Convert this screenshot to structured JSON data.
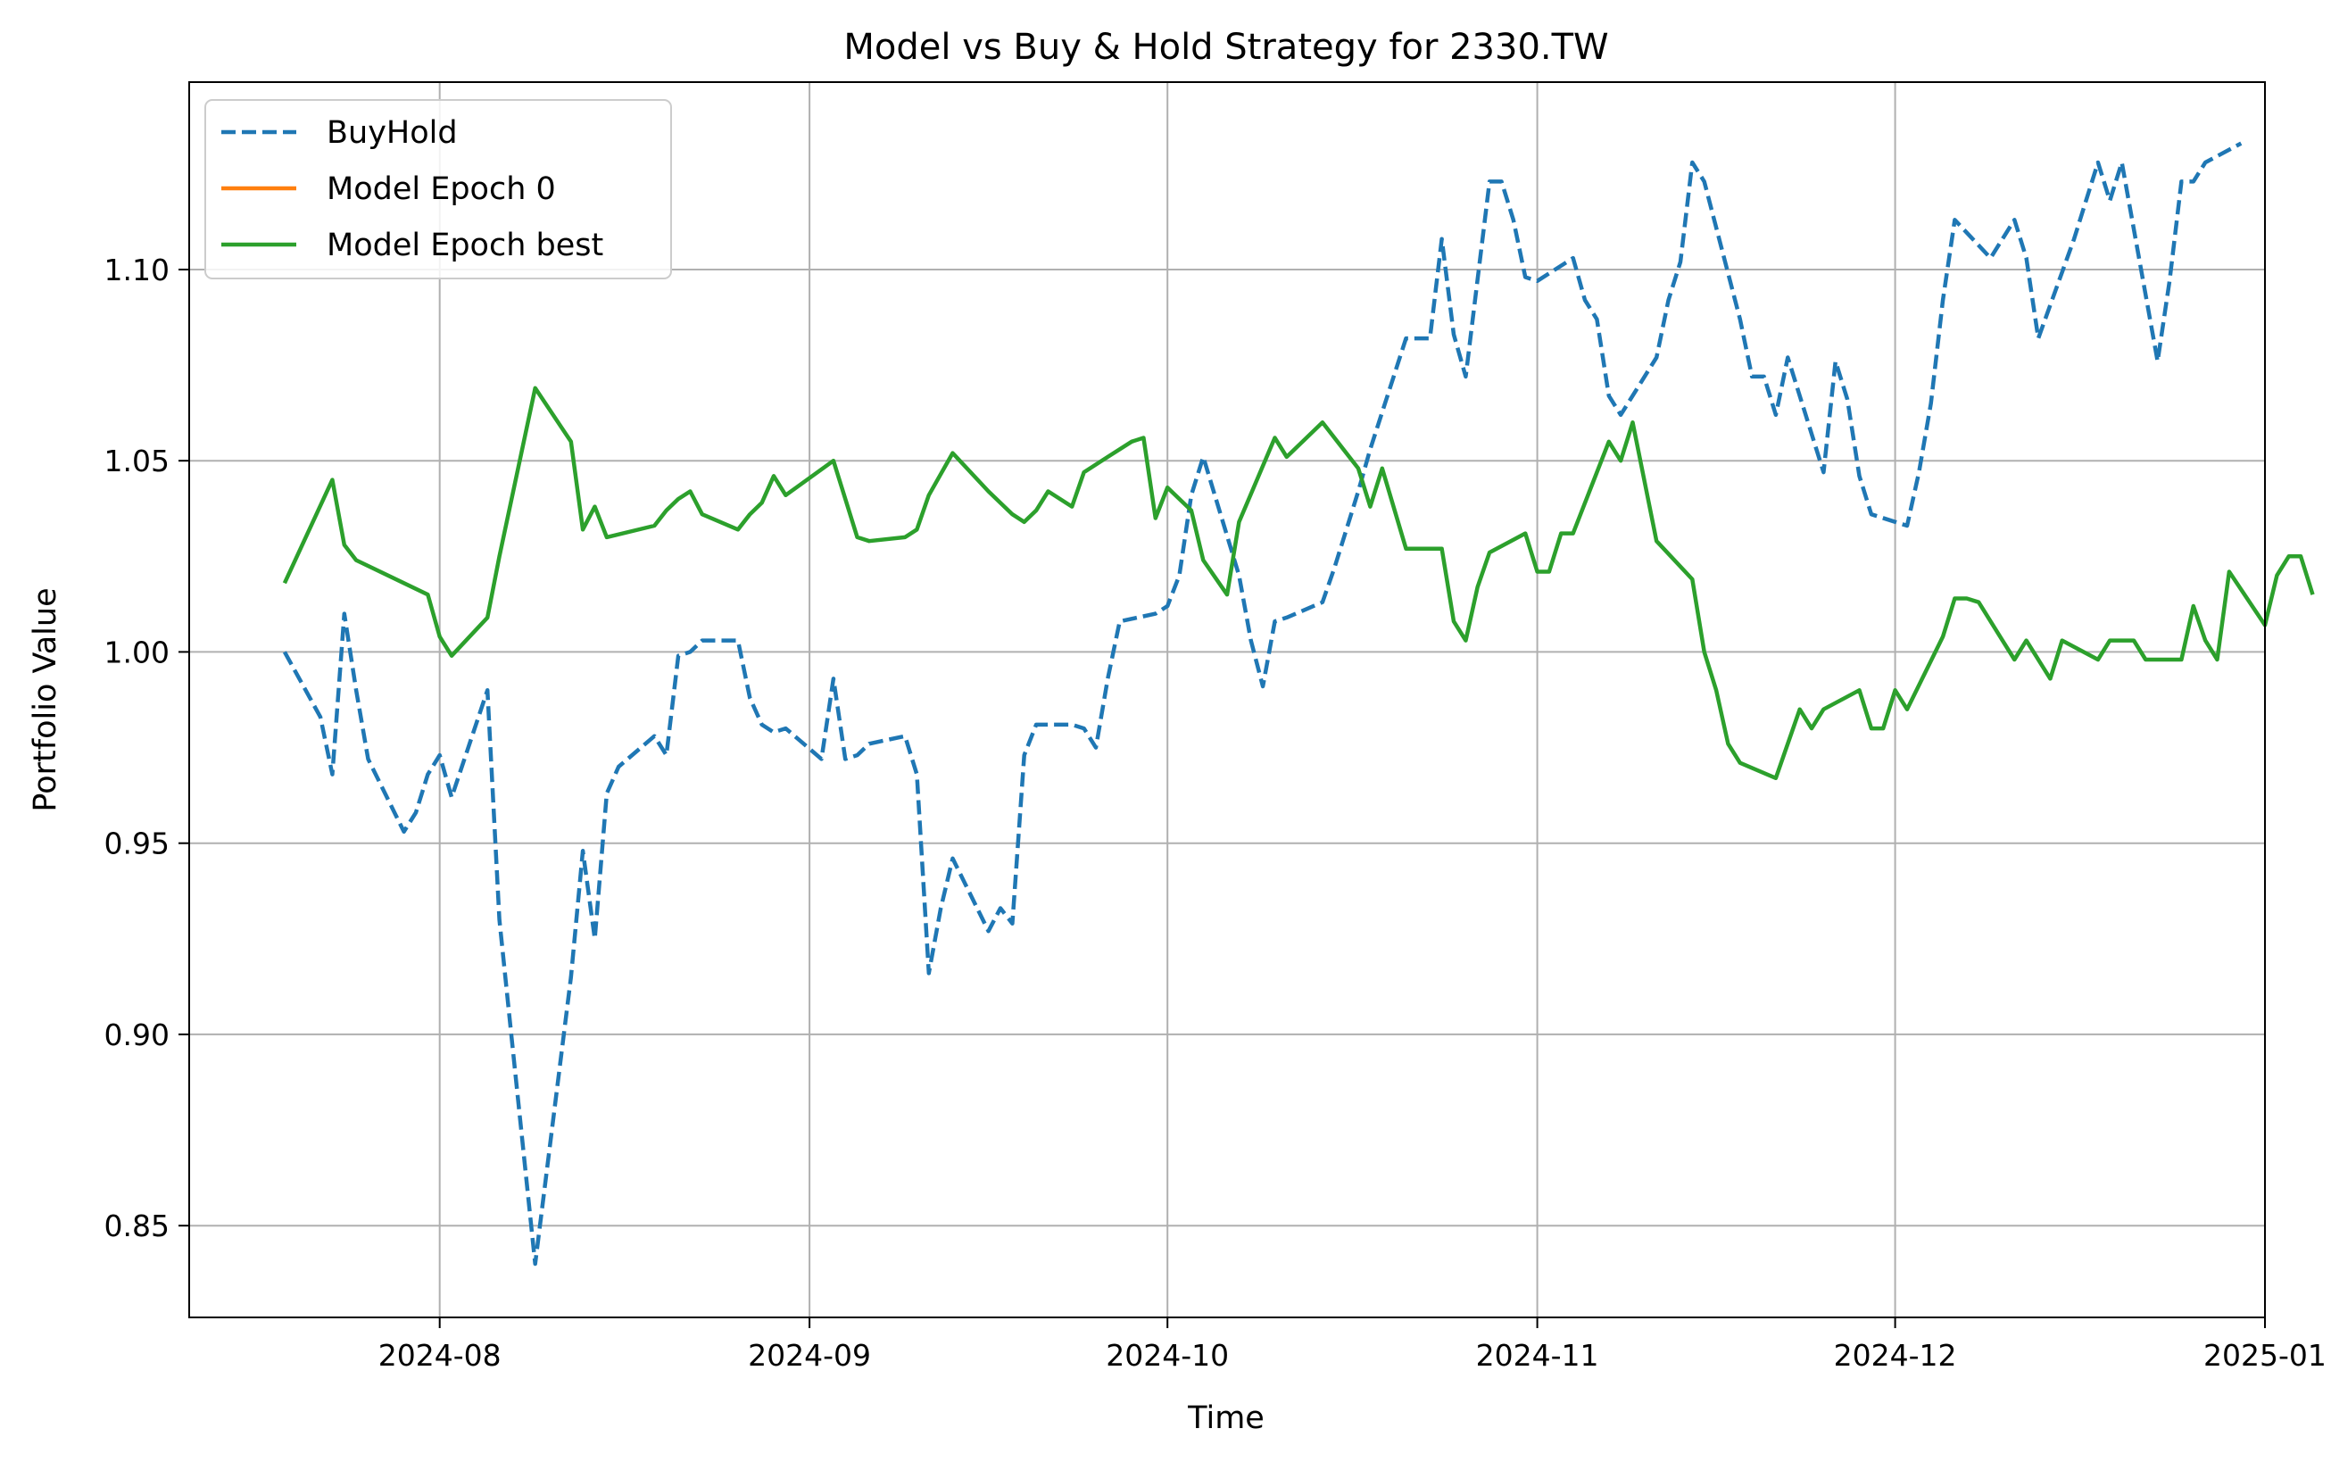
{
  "chart_data": {
    "type": "line",
    "title": "Model vs Buy & Hold Strategy for 2330.TW",
    "xlabel": "Time",
    "ylabel": "Portfolio Value",
    "xlim": [
      "2024-07-11",
      "2025-01-01"
    ],
    "ylim": [
      0.826,
      1.149
    ],
    "x_ticks": [
      "2024-08-01",
      "2024-09-01",
      "2024-10-01",
      "2024-11-01",
      "2024-12-01",
      "2025-01-01"
    ],
    "x_tick_labels": [
      "2024-08",
      "2024-09",
      "2024-10",
      "2024-11",
      "2024-12",
      "2025-01"
    ],
    "y_ticks": [
      0.85,
      0.9,
      0.95,
      1.0,
      1.05,
      1.1
    ],
    "y_tick_labels": [
      "0.85",
      "0.90",
      "0.95",
      "1.00",
      "1.05",
      "1.10"
    ],
    "grid": true,
    "legend_position": "top-left",
    "series": [
      {
        "name": "BuyHold",
        "color": "#1f77b4",
        "style": "dashed",
        "points": [
          [
            "2024-07-19",
            1.0
          ],
          [
            "2024-07-22",
            0.983
          ],
          [
            "2024-07-23",
            0.968
          ],
          [
            "2024-07-24",
            1.01
          ],
          [
            "2024-07-25",
            0.99
          ],
          [
            "2024-07-26",
            0.972
          ],
          [
            "2024-07-29",
            0.953
          ],
          [
            "2024-07-30",
            0.958
          ],
          [
            "2024-07-31",
            0.968
          ],
          [
            "2024-08-01",
            0.973
          ],
          [
            "2024-08-02",
            0.962
          ],
          [
            "2024-08-05",
            0.99
          ],
          [
            "2024-08-06",
            0.93
          ],
          [
            "2024-08-07",
            0.9
          ],
          [
            "2024-08-08",
            0.87
          ],
          [
            "2024-08-09",
            0.84
          ],
          [
            "2024-08-12",
            0.915
          ],
          [
            "2024-08-13",
            0.948
          ],
          [
            "2024-08-14",
            0.925
          ],
          [
            "2024-08-15",
            0.963
          ],
          [
            "2024-08-16",
            0.97
          ],
          [
            "2024-08-19",
            0.978
          ],
          [
            "2024-08-20",
            0.973
          ],
          [
            "2024-08-21",
            0.999
          ],
          [
            "2024-08-22",
            1.0
          ],
          [
            "2024-08-23",
            1.003
          ],
          [
            "2024-08-26",
            1.003
          ],
          [
            "2024-08-27",
            0.988
          ],
          [
            "2024-08-28",
            0.981
          ],
          [
            "2024-08-29",
            0.979
          ],
          [
            "2024-08-30",
            0.98
          ],
          [
            "2024-09-02",
            0.972
          ],
          [
            "2024-09-03",
            0.993
          ],
          [
            "2024-09-04",
            0.972
          ],
          [
            "2024-09-05",
            0.973
          ],
          [
            "2024-09-06",
            0.976
          ],
          [
            "2024-09-09",
            0.978
          ],
          [
            "2024-09-10",
            0.968
          ],
          [
            "2024-09-11",
            0.916
          ],
          [
            "2024-09-12",
            0.933
          ],
          [
            "2024-09-13",
            0.946
          ],
          [
            "2024-09-16",
            0.927
          ],
          [
            "2024-09-17",
            0.933
          ],
          [
            "2024-09-18",
            0.929
          ],
          [
            "2024-09-19",
            0.973
          ],
          [
            "2024-09-20",
            0.981
          ],
          [
            "2024-09-23",
            0.981
          ],
          [
            "2024-09-24",
            0.98
          ],
          [
            "2024-09-25",
            0.975
          ],
          [
            "2024-09-26",
            0.993
          ],
          [
            "2024-09-27",
            1.008
          ],
          [
            "2024-09-30",
            1.01
          ],
          [
            "2024-10-01",
            1.012
          ],
          [
            "2024-10-02",
            1.02
          ],
          [
            "2024-10-03",
            1.041
          ],
          [
            "2024-10-04",
            1.051
          ],
          [
            "2024-10-07",
            1.02
          ],
          [
            "2024-10-08",
            1.003
          ],
          [
            "2024-10-09",
            0.991
          ],
          [
            "2024-10-10",
            1.008
          ],
          [
            "2024-10-11",
            1.009
          ],
          [
            "2024-10-14",
            1.013
          ],
          [
            "2024-10-15",
            1.022
          ],
          [
            "2024-10-16",
            1.032
          ],
          [
            "2024-10-17",
            1.042
          ],
          [
            "2024-10-18",
            1.053
          ],
          [
            "2024-10-21",
            1.082
          ],
          [
            "2024-10-22",
            1.082
          ],
          [
            "2024-10-23",
            1.082
          ],
          [
            "2024-10-24",
            1.108
          ],
          [
            "2024-10-25",
            1.083
          ],
          [
            "2024-10-26",
            1.072
          ],
          [
            "2024-10-28",
            1.123
          ],
          [
            "2024-10-29",
            1.123
          ],
          [
            "2024-10-30",
            1.113
          ],
          [
            "2024-10-31",
            1.098
          ],
          [
            "2024-11-01",
            1.097
          ],
          [
            "2024-11-04",
            1.103
          ],
          [
            "2024-11-05",
            1.092
          ],
          [
            "2024-11-06",
            1.087
          ],
          [
            "2024-11-07",
            1.067
          ],
          [
            "2024-11-08",
            1.062
          ],
          [
            "2024-11-11",
            1.077
          ],
          [
            "2024-11-12",
            1.092
          ],
          [
            "2024-11-13",
            1.102
          ],
          [
            "2024-11-14",
            1.128
          ],
          [
            "2024-11-15",
            1.123
          ],
          [
            "2024-11-18",
            1.087
          ],
          [
            "2024-11-19",
            1.072
          ],
          [
            "2024-11-20",
            1.072
          ],
          [
            "2024-11-21",
            1.062
          ],
          [
            "2024-11-22",
            1.077
          ],
          [
            "2024-11-25",
            1.047
          ],
          [
            "2024-11-26",
            1.076
          ],
          [
            "2024-11-27",
            1.066
          ],
          [
            "2024-11-28",
            1.046
          ],
          [
            "2024-11-29",
            1.036
          ],
          [
            "2024-12-02",
            1.033
          ],
          [
            "2024-12-03",
            1.047
          ],
          [
            "2024-12-04",
            1.065
          ],
          [
            "2024-12-05",
            1.092
          ],
          [
            "2024-12-06",
            1.113
          ],
          [
            "2024-12-09",
            1.103
          ],
          [
            "2024-12-10",
            1.108
          ],
          [
            "2024-12-11",
            1.113
          ],
          [
            "2024-12-12",
            1.103
          ],
          [
            "2024-12-13",
            1.082
          ],
          [
            "2024-12-16",
            1.108
          ],
          [
            "2024-12-17",
            1.118
          ],
          [
            "2024-12-18",
            1.128
          ],
          [
            "2024-12-19",
            1.118
          ],
          [
            "2024-12-20",
            1.128
          ],
          [
            "2024-12-23",
            1.076
          ],
          [
            "2024-12-24",
            1.097
          ],
          [
            "2024-12-25",
            1.123
          ],
          [
            "2024-12-26",
            1.123
          ],
          [
            "2024-12-27",
            1.128
          ],
          [
            "2024-12-30",
            1.133
          ]
        ]
      },
      {
        "name": "Model Epoch 0",
        "color": "#ff7f0e",
        "style": "solid",
        "points": []
      },
      {
        "name": "Model Epoch best",
        "color": "#2ca02c",
        "style": "solid",
        "points": [
          [
            "2024-07-19",
            1.018
          ],
          [
            "2024-07-23",
            1.045
          ],
          [
            "2024-07-24",
            1.028
          ],
          [
            "2024-07-25",
            1.024
          ],
          [
            "2024-07-29",
            1.018
          ],
          [
            "2024-07-31",
            1.015
          ],
          [
            "2024-08-01",
            1.004
          ],
          [
            "2024-08-02",
            0.999
          ],
          [
            "2024-08-05",
            1.009
          ],
          [
            "2024-08-06",
            1.025
          ],
          [
            "2024-08-09",
            1.069
          ],
          [
            "2024-08-12",
            1.055
          ],
          [
            "2024-08-13",
            1.032
          ],
          [
            "2024-08-14",
            1.038
          ],
          [
            "2024-08-15",
            1.03
          ],
          [
            "2024-08-19",
            1.033
          ],
          [
            "2024-08-20",
            1.037
          ],
          [
            "2024-08-21",
            1.04
          ],
          [
            "2024-08-22",
            1.042
          ],
          [
            "2024-08-23",
            1.036
          ],
          [
            "2024-08-26",
            1.032
          ],
          [
            "2024-08-27",
            1.036
          ],
          [
            "2024-08-28",
            1.039
          ],
          [
            "2024-08-29",
            1.046
          ],
          [
            "2024-08-30",
            1.041
          ],
          [
            "2024-09-03",
            1.05
          ],
          [
            "2024-09-05",
            1.03
          ],
          [
            "2024-09-06",
            1.029
          ],
          [
            "2024-09-09",
            1.03
          ],
          [
            "2024-09-10",
            1.032
          ],
          [
            "2024-09-11",
            1.041
          ],
          [
            "2024-09-13",
            1.052
          ],
          [
            "2024-09-16",
            1.042
          ],
          [
            "2024-09-18",
            1.036
          ],
          [
            "2024-09-19",
            1.034
          ],
          [
            "2024-09-20",
            1.037
          ],
          [
            "2024-09-21",
            1.042
          ],
          [
            "2024-09-23",
            1.038
          ],
          [
            "2024-09-24",
            1.047
          ],
          [
            "2024-09-26",
            1.051
          ],
          [
            "2024-09-28",
            1.055
          ],
          [
            "2024-09-29",
            1.056
          ],
          [
            "2024-09-30",
            1.035
          ],
          [
            "2024-10-01",
            1.043
          ],
          [
            "2024-10-03",
            1.037
          ],
          [
            "2024-10-04",
            1.024
          ],
          [
            "2024-10-06",
            1.015
          ],
          [
            "2024-10-07",
            1.034
          ],
          [
            "2024-10-10",
            1.056
          ],
          [
            "2024-10-11",
            1.051
          ],
          [
            "2024-10-14",
            1.06
          ],
          [
            "2024-10-17",
            1.048
          ],
          [
            "2024-10-18",
            1.038
          ],
          [
            "2024-10-19",
            1.048
          ],
          [
            "2024-10-21",
            1.027
          ],
          [
            "2024-10-24",
            1.027
          ],
          [
            "2024-10-25",
            1.008
          ],
          [
            "2024-10-26",
            1.003
          ],
          [
            "2024-10-27",
            1.017
          ],
          [
            "2024-10-28",
            1.026
          ],
          [
            "2024-10-31",
            1.031
          ],
          [
            "2024-11-01",
            1.021
          ],
          [
            "2024-11-02",
            1.021
          ],
          [
            "2024-11-03",
            1.031
          ],
          [
            "2024-11-04",
            1.031
          ],
          [
            "2024-11-07",
            1.055
          ],
          [
            "2024-11-08",
            1.05
          ],
          [
            "2024-11-09",
            1.06
          ],
          [
            "2024-11-11",
            1.029
          ],
          [
            "2024-11-14",
            1.019
          ],
          [
            "2024-11-15",
            1.0
          ],
          [
            "2024-11-16",
            0.99
          ],
          [
            "2024-11-17",
            0.976
          ],
          [
            "2024-11-18",
            0.971
          ],
          [
            "2024-11-21",
            0.967
          ],
          [
            "2024-11-23",
            0.985
          ],
          [
            "2024-11-24",
            0.98
          ],
          [
            "2024-11-25",
            0.985
          ],
          [
            "2024-11-28",
            0.99
          ],
          [
            "2024-11-29",
            0.98
          ],
          [
            "2024-11-30",
            0.98
          ],
          [
            "2024-12-01",
            0.99
          ],
          [
            "2024-12-02",
            0.985
          ],
          [
            "2024-12-05",
            1.004
          ],
          [
            "2024-12-06",
            1.014
          ],
          [
            "2024-12-07",
            1.014
          ],
          [
            "2024-12-08",
            1.013
          ],
          [
            "2024-12-10",
            1.003
          ],
          [
            "2024-12-11",
            0.998
          ],
          [
            "2024-12-12",
            1.003
          ],
          [
            "2024-12-14",
            0.993
          ],
          [
            "2024-12-15",
            1.003
          ],
          [
            "2024-12-18",
            0.998
          ],
          [
            "2024-12-19",
            1.003
          ],
          [
            "2024-12-21",
            1.003
          ],
          [
            "2024-12-22",
            0.998
          ],
          [
            "2024-12-25",
            0.998
          ],
          [
            "2024-12-26",
            1.012
          ],
          [
            "2024-12-27",
            1.003
          ],
          [
            "2024-12-28",
            0.998
          ],
          [
            "2024-12-29",
            1.021
          ],
          [
            "2025-01-01",
            1.007
          ],
          [
            "2025-01-02",
            1.02
          ],
          [
            "2025-01-03",
            1.025
          ],
          [
            "2025-01-04",
            1.025
          ],
          [
            "2025-01-05",
            1.015
          ]
        ]
      }
    ]
  }
}
